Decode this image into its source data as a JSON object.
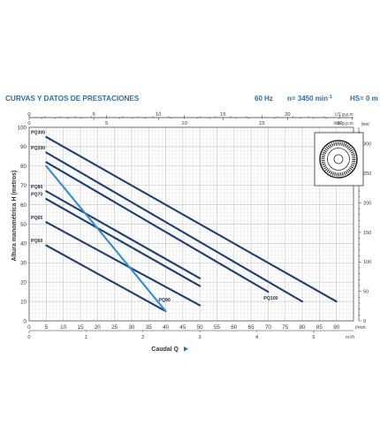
{
  "header": {
    "title": "CURVAS Y DATOS DE PRESTACIONES",
    "frequency": "60 Hz",
    "speed_prefix": "n= 3450 min",
    "speed_exp": "-1",
    "hs": "HS= 0 m"
  },
  "colors": {
    "title": "#2f6fa3",
    "series_main": "#1f3f73",
    "series_highlight": "#2f8fd0",
    "grid_minor": "#e3e3e3",
    "grid_major": "#c8c8c8",
    "frame": "#555555"
  },
  "icons": {
    "impeller": "peripheral-impeller-icon",
    "axis_arrow": "arrow-right-icon"
  },
  "chart_data": {
    "type": "line",
    "title": "CURVAS Y DATOS DE PRESTACIONES",
    "xlabel": "Caudal Q",
    "ylabel": "Altura manométrica H (metros)",
    "x_unit": "l/min",
    "y_unit_right": "feet",
    "xlim": [
      0,
      95
    ],
    "ylim": [
      0,
      100
    ],
    "x_ticks": [
      0,
      5,
      10,
      15,
      20,
      25,
      30,
      35,
      40,
      45,
      50,
      55,
      60,
      65,
      70,
      75,
      80,
      85,
      90
    ],
    "x_tick_labels": [
      "0",
      "5",
      "10",
      "15",
      "20",
      "25",
      "30",
      "35",
      "40",
      "45",
      "50",
      "55",
      "60",
      "65",
      "70",
      "75",
      "80",
      "85",
      "90"
    ],
    "y_ticks": [
      0,
      10,
      20,
      30,
      40,
      50,
      60,
      70,
      80,
      90,
      100
    ],
    "y_tick_labels": [
      "0",
      "10",
      "20",
      "30",
      "40",
      "50",
      "60",
      "70",
      "80",
      "90",
      "100"
    ],
    "top_axis_us": {
      "unit": "US g.p.m.",
      "ticks": [
        0,
        5,
        10,
        15,
        20
      ],
      "labels": [
        "0",
        "5",
        "10",
        "15",
        "20"
      ],
      "max": 25.1
    },
    "top_axis_imp": {
      "unit": "Imp g.p.m.",
      "ticks": [
        0,
        5,
        10,
        15,
        20
      ],
      "labels": [
        "0",
        "5",
        "10",
        "15",
        "20"
      ],
      "max": 20.9
    },
    "bottom_axis_m3h": {
      "unit": "m³/h",
      "ticks": [
        0,
        1,
        2,
        3,
        4,
        5
      ],
      "labels": [
        "0",
        "1",
        "2",
        "3",
        "4",
        "5"
      ],
      "max": 5.7
    },
    "right_axis_feet": {
      "unit": "feet",
      "ticks": [
        0,
        50,
        100,
        150,
        200,
        250,
        300
      ],
      "labels": [
        "0",
        "50",
        "100",
        "150",
        "200",
        "250",
        "300"
      ],
      "max": 328
    },
    "series": [
      {
        "name": "PQ300",
        "color_key": "series_main",
        "label_pos": "start",
        "x": [
          5,
          90
        ],
        "y": [
          95,
          10
        ]
      },
      {
        "name": "PQ200",
        "color_key": "series_main",
        "label_pos": "start",
        "x": [
          5,
          80
        ],
        "y": [
          87,
          10
        ]
      },
      {
        "name": "PQ100",
        "color_key": "series_main",
        "label_pos": "end",
        "x": [
          5,
          70
        ],
        "y": [
          82,
          15
        ]
      },
      {
        "name": "PQ80",
        "color_key": "series_main",
        "label_pos": "start",
        "x": [
          5,
          50
        ],
        "y": [
          67,
          22
        ]
      },
      {
        "name": "PQ70",
        "color_key": "series_main",
        "label_pos": "start",
        "x": [
          5,
          50
        ],
        "y": [
          63,
          18
        ]
      },
      {
        "name": "PQ65",
        "color_key": "series_main",
        "label_pos": "start",
        "x": [
          5,
          50
        ],
        "y": [
          51,
          8
        ]
      },
      {
        "name": "PQ60",
        "color_key": "series_main",
        "label_pos": "start",
        "x": [
          5,
          40
        ],
        "y": [
          39,
          5
        ]
      },
      {
        "name": "PQ90",
        "color_key": "series_highlight",
        "label_pos": "end",
        "x": [
          5,
          40
        ],
        "y": [
          80,
          5
        ]
      }
    ]
  }
}
